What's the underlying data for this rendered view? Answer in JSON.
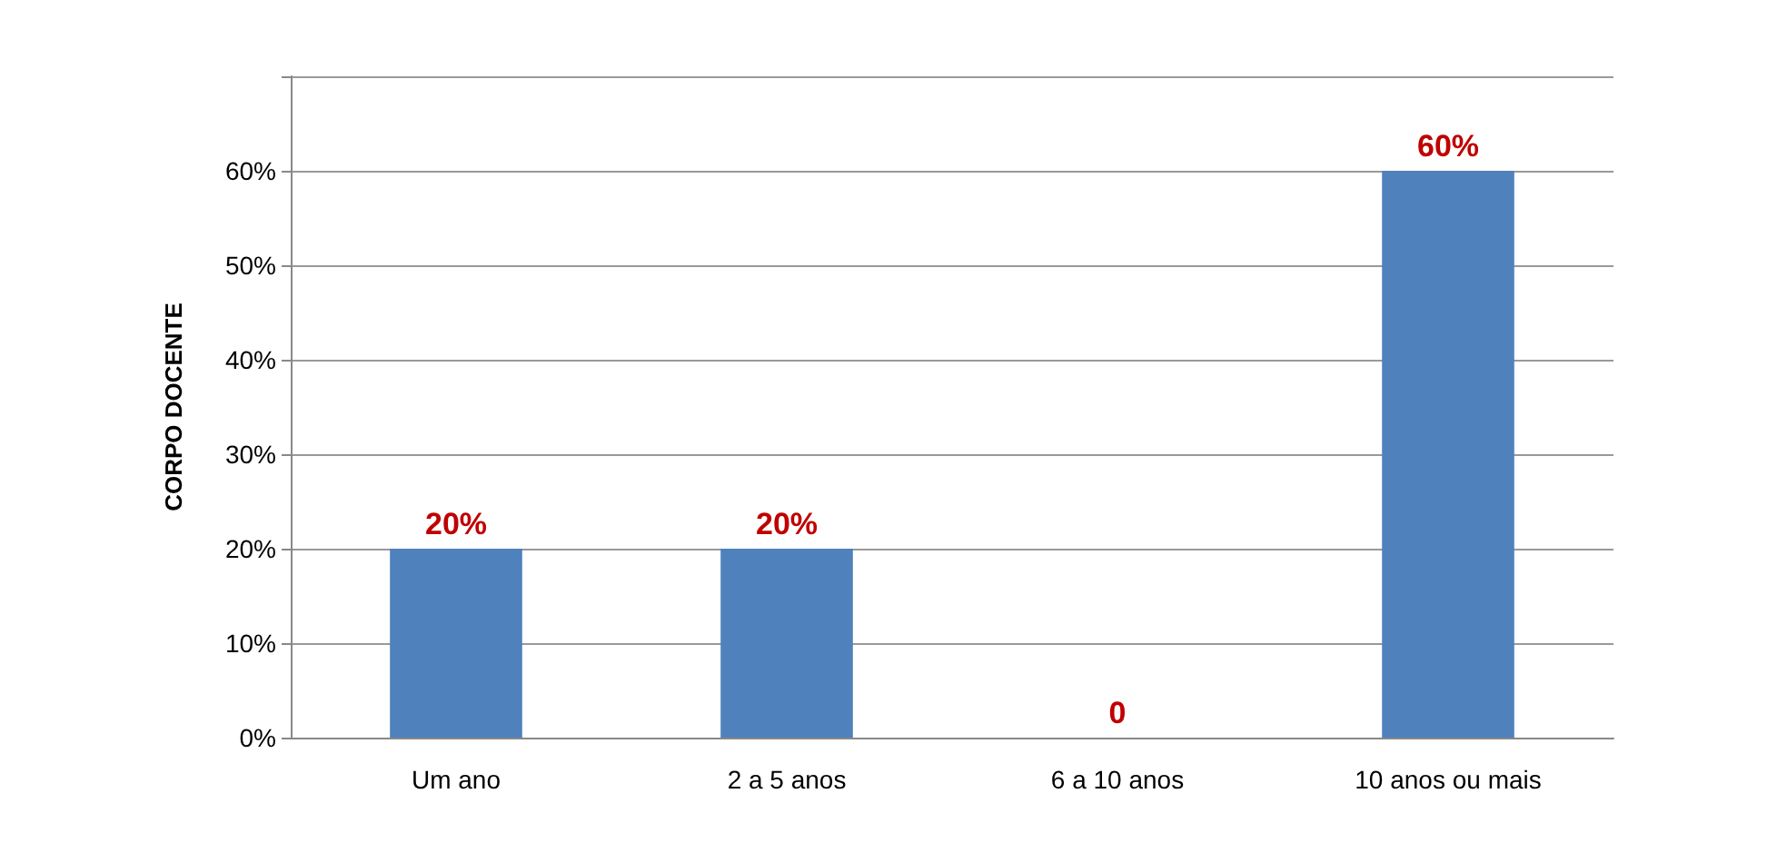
{
  "chart_data": {
    "type": "bar",
    "ylabel": "CORPO DOCENTE",
    "categories": [
      "Um ano",
      "2 a 5 anos",
      "6 a 10 anos",
      "10 anos ou mais"
    ],
    "values": [
      20,
      20,
      0,
      60
    ],
    "value_labels": [
      "20%",
      "20%",
      "0",
      "60%"
    ],
    "color": "#4f81bd",
    "ylim": [
      0,
      70
    ],
    "yticks": [
      {
        "value": 0,
        "label": "0%"
      },
      {
        "value": 10,
        "label": "10%"
      },
      {
        "value": 20,
        "label": "20%"
      },
      {
        "value": 30,
        "label": "30%"
      },
      {
        "value": 40,
        "label": "40%"
      },
      {
        "value": 50,
        "label": "50%"
      },
      {
        "value": 60,
        "label": "60%"
      },
      {
        "value": 70,
        "label": null
      }
    ],
    "grid": true
  }
}
